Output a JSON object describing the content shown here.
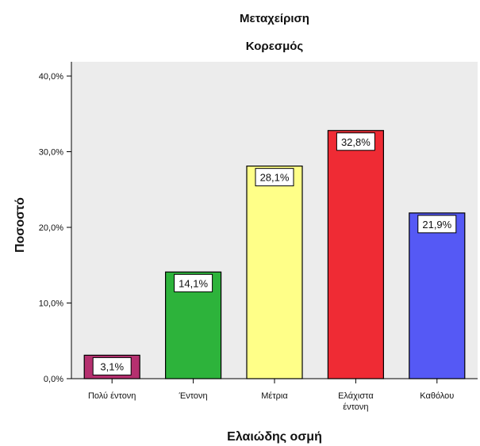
{
  "chart_data": {
    "type": "bar",
    "title": "Μεταχείριση",
    "subtitle": "Κορεσμός",
    "xlabel": "Ελαιώδης οσμή",
    "ylabel": "Ποσοστό",
    "categories": [
      "Πολύ έντονη",
      "Έντονη",
      "Μέτρια",
      "Ελάχιστα έντονη",
      "Καθόλου"
    ],
    "values": [
      3.1,
      14.1,
      28.1,
      32.8,
      21.9
    ],
    "data_labels": [
      "3,1%",
      "14,1%",
      "28,1%",
      "32,8%",
      "21,9%"
    ],
    "colors": [
      "#b5306f",
      "#2db33b",
      "#ffff88",
      "#ef2b34",
      "#5559f5"
    ],
    "ylim": [
      0,
      40
    ],
    "yticks": [
      0,
      10,
      20,
      30,
      40
    ],
    "ytick_labels": [
      "0,0%",
      "10,0%",
      "20,0%",
      "30,0%",
      "40,0%"
    ],
    "plot_background": "#ececec",
    "grid": false,
    "legend": "none"
  }
}
